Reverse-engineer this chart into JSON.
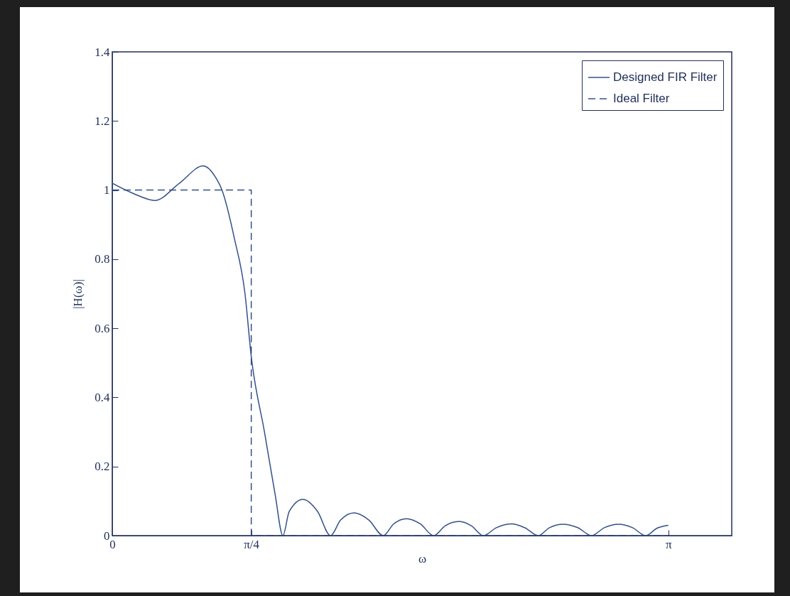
{
  "chart_data": {
    "type": "line",
    "xlabel": "ω",
    "ylabel": "|H(ω)|",
    "xlim": [
      0,
      3.5
    ],
    "ylim": [
      0,
      1.4
    ],
    "xticks": [
      0,
      {
        "value": 0.7854,
        "label": "π/4"
      },
      {
        "value": 3.1416,
        "label": "π"
      }
    ],
    "yticks": [
      0,
      0.2,
      0.4,
      0.6,
      0.8,
      1,
      1.2,
      1.4
    ],
    "grid": false,
    "legend": "top right",
    "series": [
      {
        "name": "Designed FIR Filter",
        "color": "#34508a",
        "line_style": "solid",
        "x": [
          0,
          0.12,
          0.241,
          0.38,
          0.514,
          0.58,
          0.62,
          0.69,
          0.75,
          0.785,
          0.86,
          0.92,
          0.964,
          1.0,
          1.077,
          1.16,
          1.233,
          1.29,
          1.366,
          1.45,
          1.531,
          1.59,
          1.663,
          1.74,
          1.816,
          1.88,
          1.96,
          2.03,
          2.097,
          2.17,
          2.258,
          2.33,
          2.407,
          2.47,
          2.547,
          2.63,
          2.708,
          2.78,
          2.86,
          2.94,
          3.013,
          3.08,
          3.1416
        ],
        "values": [
          1.02,
          0.99,
          0.97,
          1.02,
          1.07,
          1.04,
          1.0,
          0.86,
          0.7,
          0.52,
          0.3,
          0.12,
          0,
          0.07,
          0.105,
          0.07,
          0,
          0.045,
          0.066,
          0.045,
          0,
          0.034,
          0.049,
          0.034,
          0,
          0.028,
          0.041,
          0.028,
          0,
          0.023,
          0.034,
          0.023,
          0,
          0.023,
          0.033,
          0.023,
          0,
          0.023,
          0.033,
          0.023,
          0,
          0.022,
          0.03
        ]
      },
      {
        "name": "Ideal Filter",
        "color": "#34508a",
        "line_style": "dashed",
        "x": [
          0,
          0.7854,
          0.7854,
          3.1416
        ],
        "values": [
          1,
          1,
          0,
          0
        ]
      }
    ]
  }
}
